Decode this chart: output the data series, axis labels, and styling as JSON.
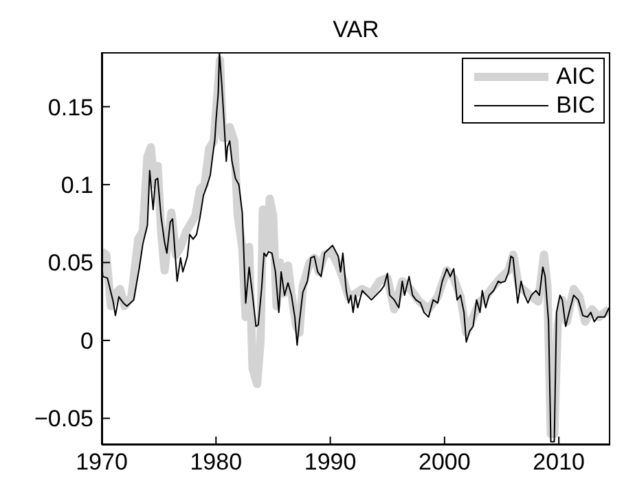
{
  "chart_data": {
    "type": "line",
    "title": "VAR",
    "xlim": [
      1970,
      2014.5
    ],
    "xticks": [
      1970,
      1980,
      1990,
      2000,
      2010
    ],
    "ylim": [
      -0.067,
      0.185
    ],
    "yticks": [
      -0.05,
      0,
      0.05,
      0.1,
      0.15
    ],
    "grid": false,
    "legend": "top right",
    "marker": "none",
    "line_style": "solid",
    "series": [
      {
        "name": "AIC",
        "color": "#d3d3d3",
        "x": [
          1970.0,
          1970.4,
          1970.8,
          1971.2,
          1971.6,
          1972.0,
          1972.6,
          1973.2,
          1973.6,
          1974.0,
          1974.3,
          1974.6,
          1974.9,
          1975.2,
          1975.5,
          1975.8,
          1976.1,
          1976.5,
          1976.9,
          1977.4,
          1977.8,
          1978.2,
          1978.6,
          1979.0,
          1979.4,
          1979.8,
          1980.2,
          1980.35,
          1980.6,
          1980.9,
          1981.2,
          1981.6,
          1981.9,
          1982.3,
          1982.6,
          1982.9,
          1983.2,
          1983.6,
          1983.9,
          1984.1,
          1984.5,
          1984.7,
          1985.0,
          1985.3,
          1985.6,
          1985.9,
          1986.3,
          1986.6,
          1987.0,
          1987.3,
          1987.6,
          1988.2,
          1988.6,
          1989.0,
          1989.5,
          1990.1,
          1990.7,
          1991.1,
          1991.6,
          1992.2,
          1992.8,
          1993.6,
          1994.3,
          1995.0,
          1995.6,
          1996.3,
          1997.0,
          1997.8,
          1998.6,
          1999.4,
          2000.2,
          2000.8,
          2001.4,
          2001.9,
          2002.5,
          2003.1,
          2003.6,
          2004.3,
          2004.9,
          2005.6,
          2006.0,
          2006.5,
          2007.0,
          2007.6,
          2008.2,
          2008.7,
          2009.0,
          2009.3,
          2009.6,
          2009.9,
          2010.3,
          2010.7,
          2011.3,
          2011.8,
          2012.3,
          2012.9,
          2013.5,
          2014.4
        ],
        "values": [
          0.057,
          0.055,
          0.022,
          0.03,
          0.033,
          0.022,
          0.028,
          0.065,
          0.07,
          0.118,
          0.124,
          0.1,
          0.112,
          0.07,
          0.045,
          0.065,
          0.082,
          0.055,
          0.06,
          0.07,
          0.075,
          0.08,
          0.097,
          0.1,
          0.123,
          0.128,
          0.165,
          0.18,
          0.13,
          0.13,
          0.137,
          0.128,
          0.08,
          0.06,
          0.015,
          0.06,
          -0.018,
          -0.028,
          0.0,
          0.084,
          0.06,
          0.091,
          0.08,
          0.022,
          0.05,
          0.03,
          0.048,
          0.03,
          0.01,
          0.005,
          0.035,
          0.05,
          0.053,
          0.044,
          0.055,
          0.057,
          0.048,
          0.04,
          0.028,
          0.03,
          0.033,
          0.03,
          0.038,
          0.04,
          0.02,
          0.038,
          0.033,
          0.025,
          0.02,
          0.028,
          0.045,
          0.04,
          0.028,
          0.005,
          0.015,
          0.025,
          0.028,
          0.035,
          0.04,
          0.045,
          0.055,
          0.035,
          0.032,
          0.028,
          0.025,
          0.055,
          0.035,
          -0.06,
          -0.06,
          0.01,
          0.026,
          0.012,
          0.033,
          0.028,
          0.012,
          0.02,
          0.015,
          0.02
        ]
      },
      {
        "name": "BIC",
        "color": "#000000",
        "x": [
          1970.0,
          1970.1,
          1970.5,
          1971.0,
          1971.2,
          1971.5,
          1971.9,
          1972.2,
          1972.8,
          1973.3,
          1973.6,
          1974.0,
          1974.2,
          1974.5,
          1974.7,
          1974.9,
          1975.2,
          1975.5,
          1975.7,
          1976.0,
          1976.2,
          1976.6,
          1976.9,
          1977.1,
          1977.5,
          1977.7,
          1978.0,
          1978.3,
          1978.6,
          1978.9,
          1979.2,
          1979.5,
          1979.7,
          1979.9,
          1980.0,
          1980.2,
          1980.3,
          1980.5,
          1980.7,
          1980.9,
          1981.0,
          1981.2,
          1981.4,
          1981.7,
          1982.0,
          1982.3,
          1982.6,
          1982.9,
          1983.2,
          1983.5,
          1983.7,
          1984.0,
          1984.2,
          1984.4,
          1984.6,
          1984.9,
          1985.2,
          1985.5,
          1985.7,
          1986.0,
          1986.3,
          1986.6,
          1986.9,
          1987.1,
          1987.3,
          1987.6,
          1988.0,
          1988.3,
          1988.6,
          1988.9,
          1989.2,
          1989.5,
          1990.2,
          1990.7,
          1990.9,
          1991.1,
          1991.4,
          1991.6,
          1991.8,
          1992.0,
          1992.2,
          1992.4,
          1992.8,
          1993.2,
          1993.6,
          1994.0,
          1994.4,
          1994.7,
          1995.0,
          1995.2,
          1995.6,
          1996.0,
          1996.3,
          1996.5,
          1996.9,
          1997.2,
          1997.5,
          1997.9,
          1998.2,
          1998.6,
          1999.0,
          1999.4,
          1999.8,
          2000.2,
          2000.5,
          2000.8,
          2001.1,
          2001.4,
          2001.7,
          2001.9,
          2002.2,
          2002.5,
          2002.8,
          2003.1,
          2003.3,
          2003.6,
          2003.9,
          2004.3,
          2004.7,
          2004.9,
          2005.3,
          2005.6,
          2005.8,
          2006.0,
          2006.4,
          2006.7,
          2007.0,
          2007.3,
          2007.6,
          2008.0,
          2008.3,
          2008.6,
          2008.8,
          2009.1,
          2009.3,
          2009.6,
          2009.8,
          2010.1,
          2010.3,
          2010.6,
          2010.9,
          2011.3,
          2011.7,
          2012.1,
          2012.5,
          2012.8,
          2013.1,
          2013.4,
          2014.0,
          2014.4
        ],
        "values": [
          0.051,
          0.041,
          0.04,
          0.025,
          0.016,
          0.028,
          0.024,
          0.022,
          0.026,
          0.047,
          0.062,
          0.074,
          0.109,
          0.084,
          0.103,
          0.104,
          0.079,
          0.063,
          0.056,
          0.076,
          0.078,
          0.038,
          0.053,
          0.044,
          0.054,
          0.068,
          0.065,
          0.068,
          0.079,
          0.093,
          0.099,
          0.106,
          0.118,
          0.129,
          0.141,
          0.159,
          0.185,
          0.165,
          0.141,
          0.115,
          0.124,
          0.128,
          0.115,
          0.104,
          0.1,
          0.082,
          0.024,
          0.047,
          0.029,
          0.009,
          0.01,
          0.034,
          0.056,
          0.054,
          0.057,
          0.056,
          0.044,
          0.018,
          0.044,
          0.029,
          0.037,
          0.029,
          0.015,
          -0.003,
          0.012,
          0.031,
          0.038,
          0.053,
          0.054,
          0.044,
          0.041,
          0.056,
          0.061,
          0.054,
          0.044,
          0.056,
          0.032,
          0.024,
          0.029,
          0.018,
          0.029,
          0.021,
          0.032,
          0.029,
          0.026,
          0.029,
          0.032,
          0.035,
          0.043,
          0.029,
          0.026,
          0.021,
          0.038,
          0.029,
          0.041,
          0.029,
          0.026,
          0.024,
          0.018,
          0.015,
          0.026,
          0.024,
          0.038,
          0.046,
          0.041,
          0.046,
          0.026,
          0.029,
          0.018,
          -0.001,
          0.006,
          0.009,
          0.026,
          0.018,
          0.032,
          0.021,
          0.029,
          0.032,
          0.038,
          0.037,
          0.038,
          0.044,
          0.054,
          0.053,
          0.024,
          0.038,
          0.029,
          0.024,
          0.029,
          0.032,
          0.029,
          0.047,
          0.041,
          0.012,
          -0.065,
          -0.065,
          0.018,
          0.029,
          0.026,
          0.009,
          0.018,
          0.029,
          0.026,
          0.016,
          0.015,
          0.018,
          0.012,
          0.015,
          0.015,
          0.021
        ]
      }
    ]
  }
}
